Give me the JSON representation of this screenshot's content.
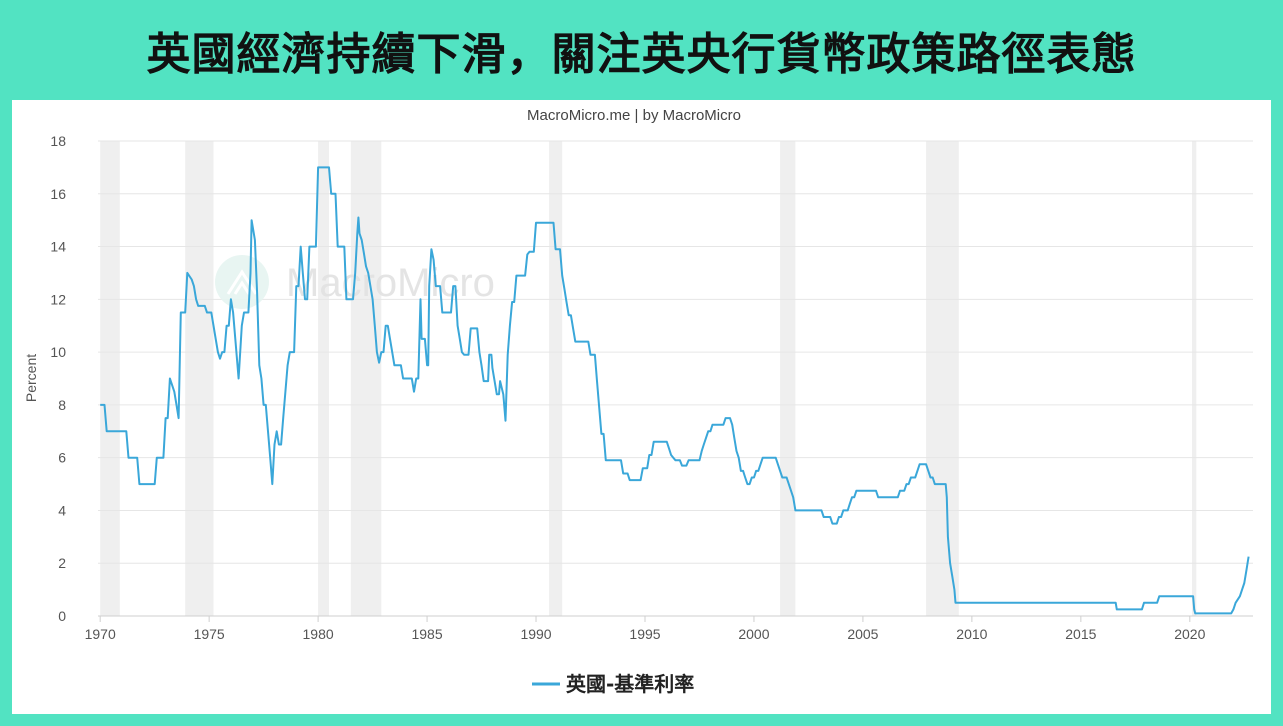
{
  "header": {
    "title": "英國經濟持續下滑，關注英央行貨幣政策路徑表態"
  },
  "chart_meta": {
    "credit": "MacroMicro.me | by MacroMicro",
    "watermark": "MacroMicro"
  },
  "colors": {
    "background": "#52e3c2",
    "line": "#3aa7d9",
    "recession": "#efefef",
    "grid": "#e6e6e6"
  },
  "chart_data": {
    "type": "line",
    "title": "",
    "xlabel": "",
    "ylabel": "Percent",
    "xlim": [
      1969.9,
      2022.9
    ],
    "ylim": [
      0,
      18
    ],
    "x_ticks": [
      1970,
      1975,
      1980,
      1985,
      1990,
      1995,
      2000,
      2005,
      2010,
      2015,
      2020
    ],
    "y_ticks": [
      0,
      2,
      4,
      6,
      8,
      10,
      12,
      14,
      16,
      18
    ],
    "legend": {
      "position": "bottom-center"
    },
    "grid": true,
    "recessions": [
      [
        1970.0,
        1970.9
      ],
      [
        1973.9,
        1975.2
      ],
      [
        1980.0,
        1980.5
      ],
      [
        1981.5,
        1982.9
      ],
      [
        1990.6,
        1991.2
      ],
      [
        2001.2,
        2001.9
      ],
      [
        2007.9,
        2009.4
      ],
      [
        2020.1,
        2020.3
      ]
    ],
    "series": [
      {
        "name": "英國-基準利率",
        "color": "#3aa7d9",
        "points": [
          [
            1970.0,
            8.0
          ],
          [
            1970.2,
            8.0
          ],
          [
            1970.3,
            7.0
          ],
          [
            1971.2,
            7.0
          ],
          [
            1971.3,
            6.0
          ],
          [
            1971.7,
            6.0
          ],
          [
            1971.8,
            5.0
          ],
          [
            1972.5,
            5.0
          ],
          [
            1972.6,
            6.0
          ],
          [
            1972.9,
            6.0
          ],
          [
            1973.0,
            7.5
          ],
          [
            1973.1,
            7.5
          ],
          [
            1973.2,
            9.0
          ],
          [
            1973.3,
            8.75
          ],
          [
            1973.4,
            8.5
          ],
          [
            1973.5,
            8.0
          ],
          [
            1973.6,
            7.5
          ],
          [
            1973.7,
            11.5
          ],
          [
            1973.9,
            11.5
          ],
          [
            1974.0,
            13.0
          ],
          [
            1974.2,
            12.75
          ],
          [
            1974.3,
            12.5
          ],
          [
            1974.4,
            12.0
          ],
          [
            1974.5,
            11.75
          ],
          [
            1974.8,
            11.75
          ],
          [
            1974.9,
            11.5
          ],
          [
            1975.1,
            11.5
          ],
          [
            1975.2,
            11.0
          ],
          [
            1975.3,
            10.5
          ],
          [
            1975.4,
            10.0
          ],
          [
            1975.5,
            9.75
          ],
          [
            1975.6,
            10.0
          ],
          [
            1975.7,
            10.0
          ],
          [
            1975.8,
            11.0
          ],
          [
            1975.9,
            11.0
          ],
          [
            1976.0,
            12.0
          ],
          [
            1976.1,
            11.5
          ],
          [
            1976.2,
            10.5
          ],
          [
            1976.3,
            9.5
          ],
          [
            1976.35,
            9.0
          ],
          [
            1976.5,
            11.0
          ],
          [
            1976.6,
            11.5
          ],
          [
            1976.8,
            11.5
          ],
          [
            1976.9,
            13.0
          ],
          [
            1976.95,
            15.0
          ],
          [
            1977.0,
            14.75
          ],
          [
            1977.1,
            14.25
          ],
          [
            1977.2,
            12.25
          ],
          [
            1977.3,
            9.5
          ],
          [
            1977.4,
            9.0
          ],
          [
            1977.5,
            8.0
          ],
          [
            1977.6,
            8.0
          ],
          [
            1977.7,
            7.0
          ],
          [
            1977.8,
            6.0
          ],
          [
            1977.9,
            5.0
          ],
          [
            1978.0,
            6.5
          ],
          [
            1978.1,
            7.0
          ],
          [
            1978.2,
            6.5
          ],
          [
            1978.3,
            6.5
          ],
          [
            1978.4,
            7.5
          ],
          [
            1978.5,
            8.5
          ],
          [
            1978.6,
            9.5
          ],
          [
            1978.7,
            10.0
          ],
          [
            1978.9,
            10.0
          ],
          [
            1979.0,
            12.5
          ],
          [
            1979.1,
            12.5
          ],
          [
            1979.2,
            14.0
          ],
          [
            1979.3,
            13.0
          ],
          [
            1979.4,
            12.0
          ],
          [
            1979.5,
            12.0
          ],
          [
            1979.6,
            14.0
          ],
          [
            1979.9,
            14.0
          ],
          [
            1980.0,
            17.0
          ],
          [
            1980.5,
            17.0
          ],
          [
            1980.6,
            16.0
          ],
          [
            1980.8,
            16.0
          ],
          [
            1980.9,
            14.0
          ],
          [
            1981.2,
            14.0
          ],
          [
            1981.3,
            12.0
          ],
          [
            1981.6,
            12.0
          ],
          [
            1981.7,
            13.0
          ],
          [
            1981.8,
            14.5
          ],
          [
            1981.85,
            15.1
          ],
          [
            1981.9,
            14.5
          ],
          [
            1982.0,
            14.25
          ],
          [
            1982.1,
            13.75
          ],
          [
            1982.2,
            13.25
          ],
          [
            1982.3,
            13.0
          ],
          [
            1982.4,
            12.5
          ],
          [
            1982.5,
            12.0
          ],
          [
            1982.6,
            11.0
          ],
          [
            1982.7,
            10.0
          ],
          [
            1982.8,
            9.6
          ],
          [
            1982.9,
            10.0
          ],
          [
            1983.0,
            10.0
          ],
          [
            1983.1,
            11.0
          ],
          [
            1983.2,
            11.0
          ],
          [
            1983.3,
            10.5
          ],
          [
            1983.4,
            10.0
          ],
          [
            1983.5,
            9.5
          ],
          [
            1983.8,
            9.5
          ],
          [
            1983.9,
            9.0
          ],
          [
            1984.3,
            9.0
          ],
          [
            1984.4,
            8.5
          ],
          [
            1984.5,
            9.0
          ],
          [
            1984.6,
            9.0
          ],
          [
            1984.7,
            12.0
          ],
          [
            1984.75,
            10.5
          ],
          [
            1984.9,
            10.5
          ],
          [
            1985.0,
            9.5
          ],
          [
            1985.05,
            9.5
          ],
          [
            1985.1,
            12.5
          ],
          [
            1985.2,
            13.9
          ],
          [
            1985.3,
            13.5
          ],
          [
            1985.4,
            12.5
          ],
          [
            1985.6,
            12.5
          ],
          [
            1985.7,
            11.5
          ],
          [
            1986.1,
            11.5
          ],
          [
            1986.2,
            12.5
          ],
          [
            1986.3,
            12.5
          ],
          [
            1986.4,
            11.0
          ],
          [
            1986.5,
            10.5
          ],
          [
            1986.6,
            10.0
          ],
          [
            1986.7,
            9.9
          ],
          [
            1986.9,
            9.9
          ],
          [
            1987.0,
            10.9
          ],
          [
            1987.3,
            10.9
          ],
          [
            1987.4,
            10.0
          ],
          [
            1987.5,
            9.5
          ],
          [
            1987.6,
            8.9
          ],
          [
            1987.8,
            8.9
          ],
          [
            1987.85,
            9.9
          ],
          [
            1987.95,
            9.9
          ],
          [
            1988.0,
            9.4
          ],
          [
            1988.1,
            8.9
          ],
          [
            1988.2,
            8.4
          ],
          [
            1988.3,
            8.4
          ],
          [
            1988.35,
            8.9
          ],
          [
            1988.5,
            8.4
          ],
          [
            1988.6,
            7.4
          ],
          [
            1988.7,
            9.9
          ],
          [
            1988.8,
            11.0
          ],
          [
            1988.9,
            11.9
          ],
          [
            1989.0,
            11.9
          ],
          [
            1989.1,
            12.9
          ],
          [
            1989.5,
            12.9
          ],
          [
            1989.6,
            13.7
          ],
          [
            1989.7,
            13.8
          ],
          [
            1989.9,
            13.8
          ],
          [
            1990.0,
            14.9
          ],
          [
            1990.8,
            14.9
          ],
          [
            1990.9,
            13.9
          ],
          [
            1991.1,
            13.9
          ],
          [
            1991.2,
            12.9
          ],
          [
            1991.3,
            12.4
          ],
          [
            1991.4,
            11.9
          ],
          [
            1991.5,
            11.4
          ],
          [
            1991.6,
            11.4
          ],
          [
            1991.7,
            10.9
          ],
          [
            1991.8,
            10.4
          ],
          [
            1992.4,
            10.4
          ],
          [
            1992.5,
            9.9
          ],
          [
            1992.7,
            9.9
          ],
          [
            1992.8,
            8.9
          ],
          [
            1992.9,
            7.9
          ],
          [
            1993.0,
            6.9
          ],
          [
            1993.1,
            6.9
          ],
          [
            1993.2,
            5.9
          ],
          [
            1993.9,
            5.9
          ],
          [
            1994.0,
            5.4
          ],
          [
            1994.2,
            5.4
          ],
          [
            1994.3,
            5.15
          ],
          [
            1994.8,
            5.15
          ],
          [
            1994.9,
            5.6
          ],
          [
            1995.1,
            5.6
          ],
          [
            1995.2,
            6.1
          ],
          [
            1995.3,
            6.1
          ],
          [
            1995.4,
            6.6
          ],
          [
            1996.0,
            6.6
          ],
          [
            1996.1,
            6.35
          ],
          [
            1996.2,
            6.1
          ],
          [
            1996.3,
            6.0
          ],
          [
            1996.4,
            5.9
          ],
          [
            1996.6,
            5.9
          ],
          [
            1996.7,
            5.7
          ],
          [
            1996.9,
            5.7
          ],
          [
            1997.0,
            5.9
          ],
          [
            1997.5,
            5.9
          ],
          [
            1997.6,
            6.25
          ],
          [
            1997.7,
            6.5
          ],
          [
            1997.8,
            6.75
          ],
          [
            1997.9,
            7.0
          ],
          [
            1998.0,
            7.0
          ],
          [
            1998.1,
            7.25
          ],
          [
            1998.6,
            7.25
          ],
          [
            1998.7,
            7.5
          ],
          [
            1998.9,
            7.5
          ],
          [
            1999.0,
            7.25
          ],
          [
            1999.1,
            6.75
          ],
          [
            1999.2,
            6.25
          ],
          [
            1999.3,
            6.0
          ],
          [
            1999.4,
            5.5
          ],
          [
            1999.5,
            5.5
          ],
          [
            1999.6,
            5.25
          ],
          [
            1999.7,
            5.0
          ],
          [
            1999.8,
            5.0
          ],
          [
            1999.9,
            5.25
          ],
          [
            2000.0,
            5.25
          ],
          [
            2000.1,
            5.5
          ],
          [
            2000.2,
            5.5
          ],
          [
            2000.3,
            5.75
          ],
          [
            2000.4,
            6.0
          ],
          [
            2001.0,
            6.0
          ],
          [
            2001.1,
            5.75
          ],
          [
            2001.2,
            5.5
          ],
          [
            2001.3,
            5.25
          ],
          [
            2001.5,
            5.25
          ],
          [
            2001.6,
            5.0
          ],
          [
            2001.7,
            4.75
          ],
          [
            2001.8,
            4.5
          ],
          [
            2001.9,
            4.0
          ],
          [
            2003.1,
            4.0
          ],
          [
            2003.2,
            3.75
          ],
          [
            2003.5,
            3.75
          ],
          [
            2003.6,
            3.5
          ],
          [
            2003.8,
            3.5
          ],
          [
            2003.9,
            3.75
          ],
          [
            2004.0,
            3.75
          ],
          [
            2004.1,
            4.0
          ],
          [
            2004.3,
            4.0
          ],
          [
            2004.4,
            4.25
          ],
          [
            2004.5,
            4.5
          ],
          [
            2004.6,
            4.5
          ],
          [
            2004.7,
            4.75
          ],
          [
            2005.6,
            4.75
          ],
          [
            2005.7,
            4.5
          ],
          [
            2006.6,
            4.5
          ],
          [
            2006.7,
            4.75
          ],
          [
            2006.9,
            4.75
          ],
          [
            2007.0,
            5.0
          ],
          [
            2007.1,
            5.0
          ],
          [
            2007.2,
            5.25
          ],
          [
            2007.4,
            5.25
          ],
          [
            2007.5,
            5.5
          ],
          [
            2007.6,
            5.75
          ],
          [
            2007.9,
            5.75
          ],
          [
            2008.0,
            5.5
          ],
          [
            2008.1,
            5.25
          ],
          [
            2008.2,
            5.25
          ],
          [
            2008.3,
            5.0
          ],
          [
            2008.8,
            5.0
          ],
          [
            2008.85,
            4.5
          ],
          [
            2008.9,
            3.0
          ],
          [
            2009.0,
            2.0
          ],
          [
            2009.1,
            1.5
          ],
          [
            2009.2,
            1.0
          ],
          [
            2009.25,
            0.5
          ],
          [
            2016.6,
            0.5
          ],
          [
            2016.65,
            0.25
          ],
          [
            2017.8,
            0.25
          ],
          [
            2017.9,
            0.5
          ],
          [
            2018.5,
            0.5
          ],
          [
            2018.6,
            0.75
          ],
          [
            2020.15,
            0.75
          ],
          [
            2020.2,
            0.25
          ],
          [
            2020.25,
            0.1
          ],
          [
            2021.9,
            0.1
          ],
          [
            2022.0,
            0.25
          ],
          [
            2022.1,
            0.5
          ],
          [
            2022.3,
            0.75
          ],
          [
            2022.4,
            1.0
          ],
          [
            2022.5,
            1.25
          ],
          [
            2022.6,
            1.75
          ],
          [
            2022.7,
            2.25
          ]
        ]
      }
    ]
  }
}
